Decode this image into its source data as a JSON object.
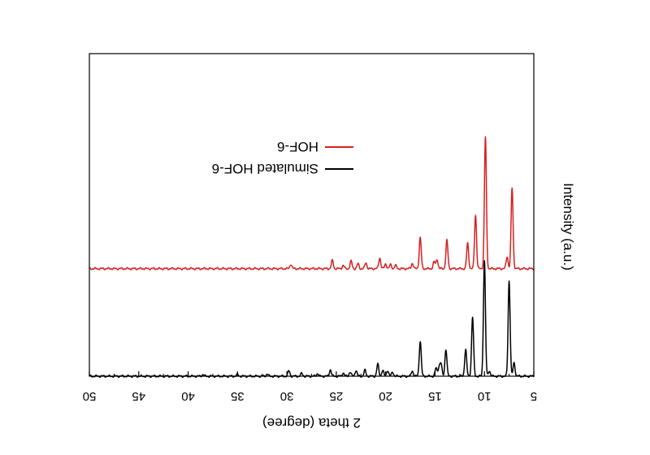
{
  "chart_data": {
    "type": "line",
    "xlabel": "2 theta (degree)",
    "ylabel": "Intensity (a.u.)",
    "xlim": [
      50,
      5
    ],
    "x_reversed": true,
    "image_mirrored": true,
    "x_ticks": [
      50,
      45,
      40,
      35,
      30,
      25,
      20,
      15,
      10,
      5
    ],
    "x_tick_labels": [
      "50",
      "45",
      "40",
      "35",
      "30",
      "25",
      "20",
      "15",
      "10",
      "5"
    ],
    "ylim": [
      0,
      1.2
    ],
    "y_ticks_shown": false,
    "grid": false,
    "legend": {
      "placement": "top-left"
    },
    "series": [
      {
        "name": "HOF-6",
        "color": "#d62020",
        "baseline": 0.4,
        "peaks": [
          {
            "x": 7.2,
            "y": 0.3
          },
          {
            "x": 7.7,
            "y": 0.045
          },
          {
            "x": 9.9,
            "y": 0.49
          },
          {
            "x": 10.9,
            "y": 0.2
          },
          {
            "x": 11.7,
            "y": 0.095
          },
          {
            "x": 13.8,
            "y": 0.105
          },
          {
            "x": 14.8,
            "y": 0.035
          },
          {
            "x": 15.1,
            "y": 0.025
          },
          {
            "x": 16.5,
            "y": 0.115
          },
          {
            "x": 17.3,
            "y": 0.02
          },
          {
            "x": 19.0,
            "y": 0.012
          },
          {
            "x": 19.5,
            "y": 0.015
          },
          {
            "x": 20.0,
            "y": 0.018
          },
          {
            "x": 20.6,
            "y": 0.04
          },
          {
            "x": 22.0,
            "y": 0.022
          },
          {
            "x": 22.8,
            "y": 0.018
          },
          {
            "x": 23.5,
            "y": 0.028
          },
          {
            "x": 24.3,
            "y": 0.012
          },
          {
            "x": 25.4,
            "y": 0.03
          },
          {
            "x": 29.6,
            "y": 0.017
          }
        ]
      },
      {
        "name": "Simulated HOF-6",
        "color": "#000000",
        "baseline": 0,
        "peaks": [
          {
            "x": 7.0,
            "y": 0.05
          },
          {
            "x": 7.5,
            "y": 0.355
          },
          {
            "x": 9.5,
            "y": 0.02
          },
          {
            "x": 10.0,
            "y": 0.43
          },
          {
            "x": 11.2,
            "y": 0.22
          },
          {
            "x": 11.9,
            "y": 0.1
          },
          {
            "x": 13.9,
            "y": 0.1
          },
          {
            "x": 14.4,
            "y": 0.045
          },
          {
            "x": 14.6,
            "y": 0.032
          },
          {
            "x": 14.9,
            "y": 0.03
          },
          {
            "x": 16.5,
            "y": 0.13
          },
          {
            "x": 17.3,
            "y": 0.02
          },
          {
            "x": 19.3,
            "y": 0.015
          },
          {
            "x": 19.8,
            "y": 0.022
          },
          {
            "x": 20.3,
            "y": 0.022
          },
          {
            "x": 20.8,
            "y": 0.045
          },
          {
            "x": 22.1,
            "y": 0.022
          },
          {
            "x": 23.0,
            "y": 0.022
          },
          {
            "x": 23.6,
            "y": 0.016
          },
          {
            "x": 24.3,
            "y": 0.012
          },
          {
            "x": 25.6,
            "y": 0.024
          },
          {
            "x": 26.9,
            "y": 0.01
          },
          {
            "x": 28.5,
            "y": 0.01
          },
          {
            "x": 29.8,
            "y": 0.02
          },
          {
            "x": 32.0,
            "y": 0.008
          },
          {
            "x": 35.0,
            "y": 0.006
          },
          {
            "x": 38.5,
            "y": 0.006
          }
        ]
      }
    ]
  }
}
